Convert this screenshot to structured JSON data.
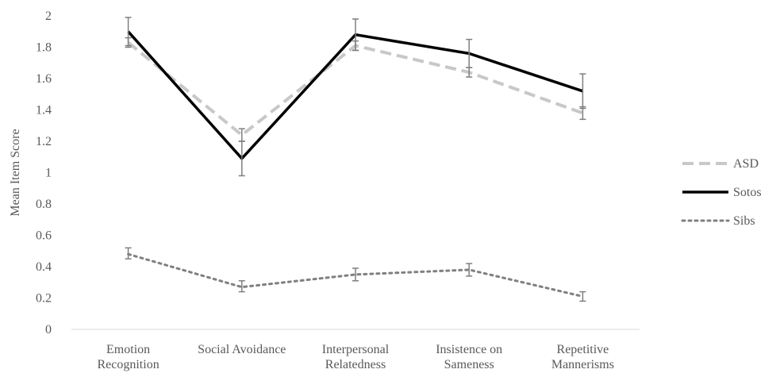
{
  "chart_data": {
    "type": "line",
    "title": "",
    "xlabel": "",
    "ylabel": "Mean Item Score",
    "ylim": [
      0,
      2
    ],
    "yticks": [
      0,
      0.2,
      0.4,
      0.6,
      0.8,
      1,
      1.2,
      1.4,
      1.6,
      1.8,
      2
    ],
    "ytick_labels": [
      "0",
      "0.2",
      "0.4",
      "0.6",
      "0.8",
      "1",
      "1.2",
      "1.4",
      "1.6",
      "1.8",
      "2"
    ],
    "categories": [
      [
        "Emotion",
        "Recognition"
      ],
      [
        "Social Avoidance"
      ],
      [
        "Interpersonal",
        "Relatedness"
      ],
      [
        "Insistence on",
        "Sameness"
      ],
      [
        "Repetitive",
        "Mannerisms"
      ]
    ],
    "grid": false,
    "legend_position": "right",
    "series": [
      {
        "name": "ASD",
        "values": [
          1.83,
          1.24,
          1.81,
          1.64,
          1.38
        ],
        "error_low": [
          1.8,
          1.2,
          1.78,
          1.61,
          1.34
        ],
        "error_high": [
          1.86,
          1.28,
          1.84,
          1.67,
          1.42
        ],
        "color": "#c8c8c8",
        "line_style": "dashed"
      },
      {
        "name": "Sotos",
        "values": [
          1.9,
          1.09,
          1.88,
          1.76,
          1.52
        ],
        "error_low": [
          1.81,
          0.98,
          1.78,
          1.67,
          1.41
        ],
        "error_high": [
          1.99,
          1.2,
          1.98,
          1.85,
          1.63
        ],
        "color": "#000000",
        "line_style": "solid"
      },
      {
        "name": "Sibs",
        "values": [
          0.48,
          0.27,
          0.35,
          0.38,
          0.21
        ],
        "error_low": [
          0.45,
          0.24,
          0.31,
          0.34,
          0.18
        ],
        "error_high": [
          0.52,
          0.31,
          0.39,
          0.42,
          0.24
        ],
        "color": "#808080",
        "line_style": "dotted"
      }
    ],
    "error_bar_color": "#7f7f7f"
  }
}
